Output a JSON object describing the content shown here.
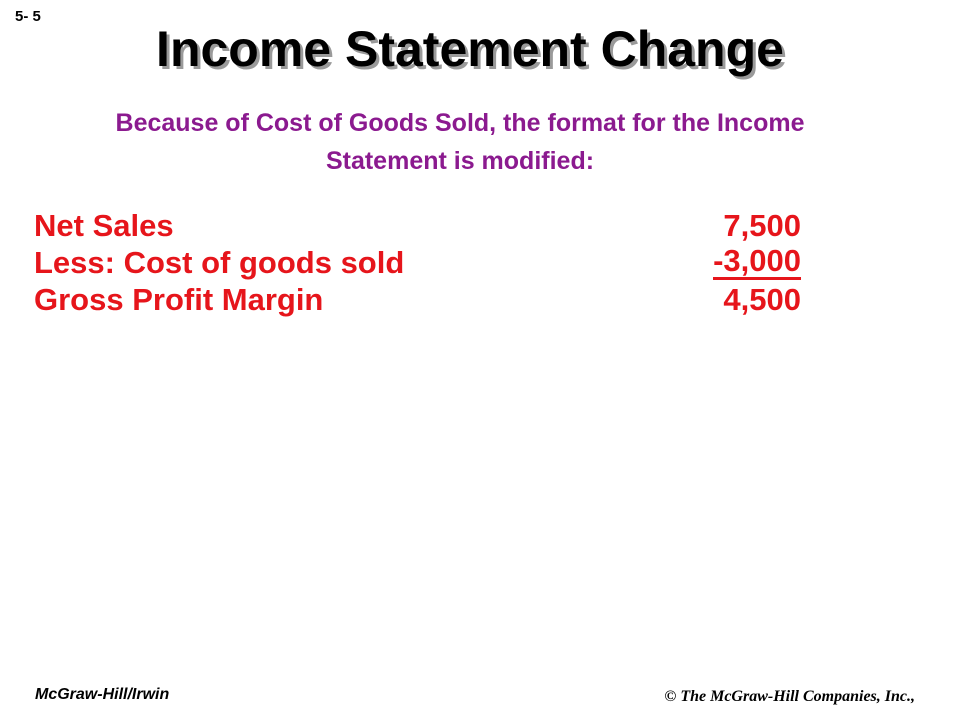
{
  "slide": {
    "number": "5- 5",
    "title": "Income Statement Change",
    "subtitle": "Because of Cost of Goods Sold, the format for the Income Statement is modified:"
  },
  "statement": {
    "rows": [
      {
        "label": "Net Sales",
        "amount": "7,500"
      },
      {
        "label": "Less: Cost of goods sold",
        "amount": "-3,000"
      },
      {
        "label": "Gross Profit Margin",
        "amount": "4,500"
      }
    ]
  },
  "footer": {
    "publisher": "McGraw-Hill/Irwin",
    "copyright": "© The McGraw-Hill Companies, Inc.,"
  },
  "colors": {
    "title": "#000000",
    "subtitle": "#8b1a8f",
    "statement": "#e6151b"
  }
}
